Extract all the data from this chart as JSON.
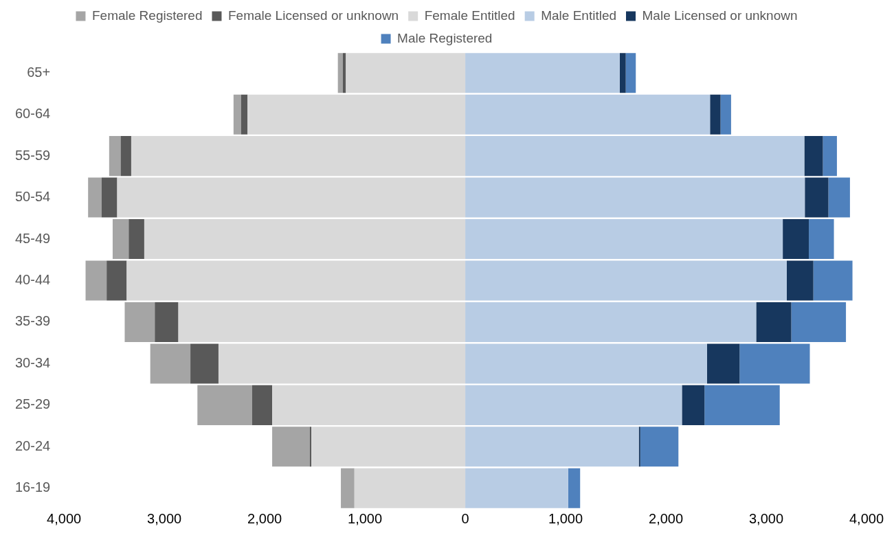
{
  "chart_data": {
    "type": "bar",
    "orientation": "horizontal",
    "stacked": true,
    "legend": "top",
    "grid": false,
    "categories": [
      "65+",
      "60-64",
      "55-59",
      "50-54",
      "45-49",
      "40-44",
      "35-39",
      "30-34",
      "25-29",
      "20-24",
      "16-19"
    ],
    "xlim": [
      -4000,
      4000
    ],
    "xticks": [
      {
        "value": -4000,
        "label": "4,000"
      },
      {
        "value": -3000,
        "label": "3,000"
      },
      {
        "value": -2000,
        "label": "2,000"
      },
      {
        "value": -1000,
        "label": "1,000"
      },
      {
        "value": 0,
        "label": "0"
      },
      {
        "value": 1000,
        "label": "1,000"
      },
      {
        "value": 2000,
        "label": "2,000"
      },
      {
        "value": 3000,
        "label": "3,000"
      },
      {
        "value": 4000,
        "label": "4,000"
      }
    ],
    "series": [
      {
        "name": "Female Entitled",
        "color": "#d9d9d9",
        "values": [
          -1190,
          -2170,
          -3330,
          -3470,
          -3200,
          -3375,
          -2860,
          -2460,
          -1925,
          -1535,
          -1105
        ]
      },
      {
        "name": "Female Licensed or unknown",
        "color": "#595959",
        "values": [
          -30,
          -65,
          -105,
          -155,
          -155,
          -200,
          -235,
          -280,
          -200,
          -15,
          0
        ]
      },
      {
        "name": "Female Registered",
        "color": "#a5a5a5",
        "values": [
          -50,
          -75,
          -115,
          -135,
          -160,
          -210,
          -300,
          -400,
          -545,
          -375,
          -135
        ]
      },
      {
        "name": "Male Entitled",
        "color": "#b8cce4",
        "values": [
          1540,
          2440,
          3380,
          3385,
          3165,
          3205,
          2900,
          2410,
          2160,
          1730,
          1025
        ]
      },
      {
        "name": "Male Licensed or unknown",
        "color": "#17375e",
        "values": [
          60,
          105,
          185,
          235,
          260,
          265,
          350,
          325,
          225,
          15,
          0
        ]
      },
      {
        "name": "Male Registered",
        "color": "#4f81bd",
        "values": [
          100,
          105,
          140,
          215,
          250,
          390,
          545,
          700,
          750,
          380,
          120
        ]
      }
    ]
  }
}
